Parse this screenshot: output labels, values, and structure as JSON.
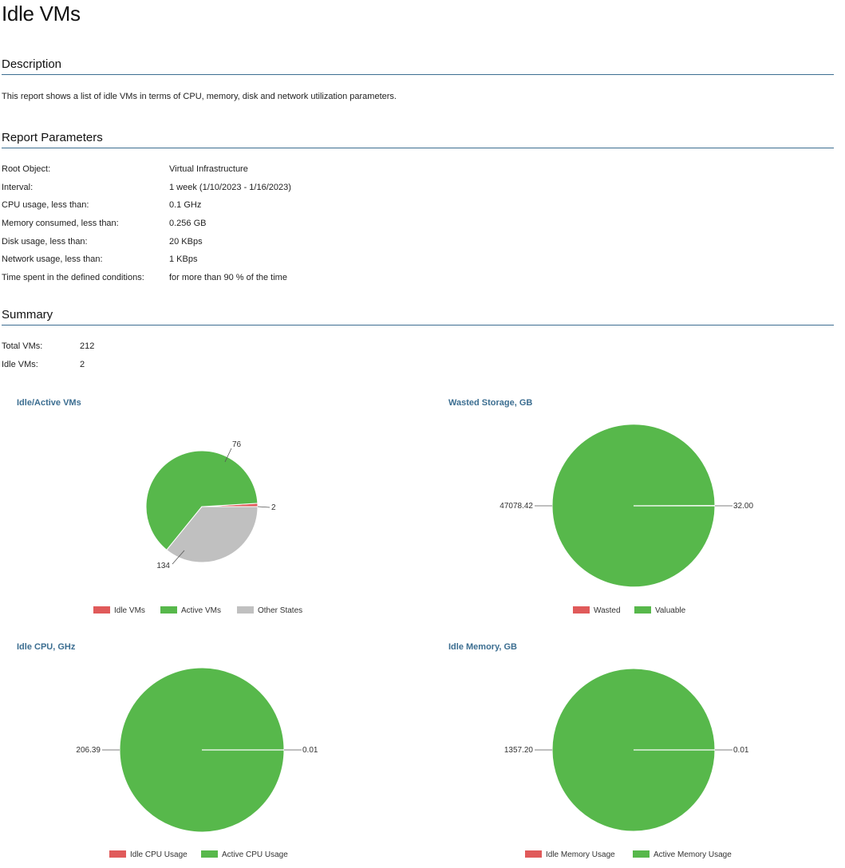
{
  "title": "Idle VMs",
  "description": {
    "heading": "Description",
    "text": "This report shows a list of idle VMs in terms of CPU, memory, disk and network utilization parameters."
  },
  "parameters": {
    "heading": "Report Parameters",
    "rows": [
      {
        "label": "Root Object:",
        "value": "Virtual Infrastructure"
      },
      {
        "label": "Interval:",
        "value": "1 week (1/10/2023 - 1/16/2023)"
      },
      {
        "label": "CPU usage, less than:",
        "value": "0.1 GHz"
      },
      {
        "label": "Memory consumed, less than:",
        "value": "0.256 GB"
      },
      {
        "label": "Disk usage, less than:",
        "value": "20 KBps"
      },
      {
        "label": "Network usage, less than:",
        "value": "1 KBps"
      },
      {
        "label": "Time spent in the defined conditions:",
        "value": "for more than 90 % of the time"
      }
    ]
  },
  "summary": {
    "heading": "Summary",
    "rows": [
      {
        "label": "Total VMs:",
        "value": "212"
      },
      {
        "label": "Idle VMs:",
        "value": "2"
      }
    ]
  },
  "chart_data": [
    {
      "type": "pie",
      "title": "Idle/Active VMs",
      "categories": [
        "Idle VMs",
        "Active VMs",
        "Other States"
      ],
      "values": [
        2,
        134,
        76
      ],
      "labels": [
        "2",
        "134",
        "76"
      ],
      "colors": [
        "#e05a5a",
        "#57b84b",
        "#c0c0c0"
      ],
      "legend": "bottom"
    },
    {
      "type": "pie",
      "title": "Wasted Storage, GB",
      "categories": [
        "Wasted",
        "Valuable"
      ],
      "values": [
        32.0,
        47078.42
      ],
      "labels": [
        "32.00",
        "47078.42"
      ],
      "colors": [
        "#e05a5a",
        "#57b84b"
      ],
      "legend": "bottom"
    },
    {
      "type": "pie",
      "title": "Idle CPU, GHz",
      "categories": [
        "Idle CPU Usage",
        "Active CPU Usage"
      ],
      "values": [
        0.01,
        206.39
      ],
      "labels": [
        "0.01",
        "206.39"
      ],
      "colors": [
        "#e05a5a",
        "#57b84b"
      ],
      "legend": "bottom"
    },
    {
      "type": "pie",
      "title": "Idle Memory, GB",
      "categories": [
        "Idle Memory Usage",
        "Active Memory Usage"
      ],
      "values": [
        0.01,
        1357.2
      ],
      "labels": [
        "0.01",
        "1357.20"
      ],
      "colors": [
        "#e05a5a",
        "#57b84b"
      ],
      "legend": "bottom"
    }
  ]
}
